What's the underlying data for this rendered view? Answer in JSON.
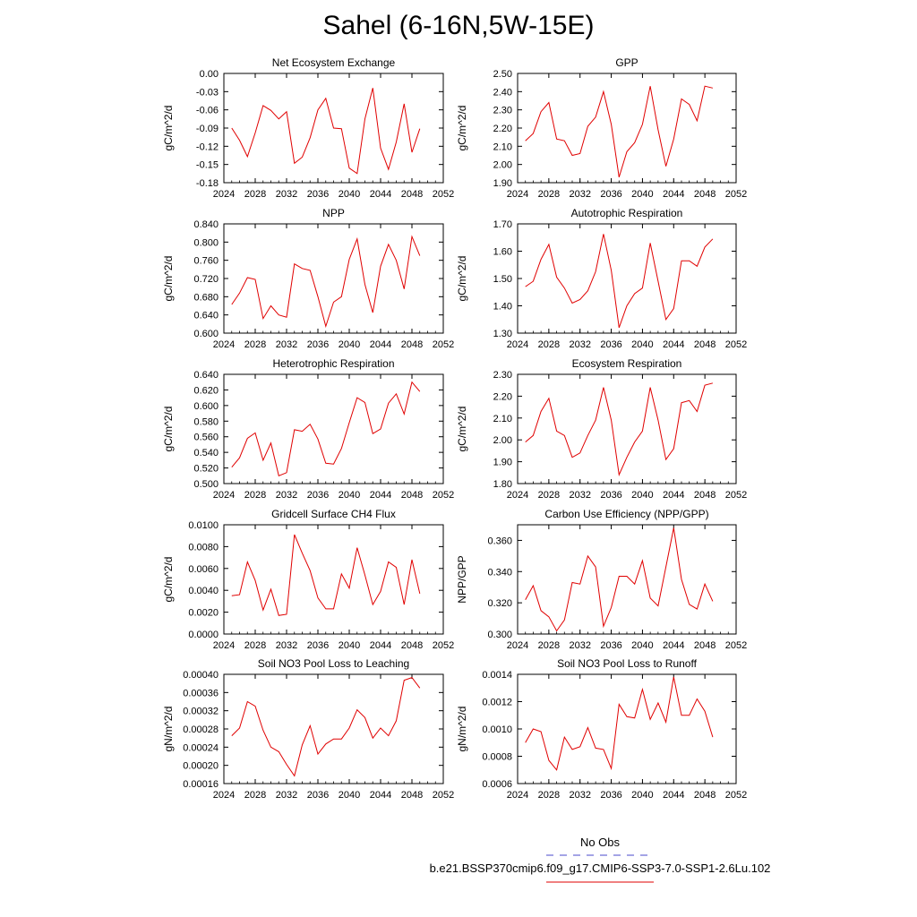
{
  "page_title": "Sahel (6-16N,5W-15E)",
  "legend": {
    "items": [
      {
        "label": "No Obs",
        "color": "#4a4acc",
        "dash": true
      },
      {
        "label": "b.e21.BSSP370cmip6.f09_g17.CMIP6-SSP3-7.0-SSP1-2.6Lu.102",
        "color": "#e00000",
        "dash": false
      }
    ]
  },
  "chart_data": [
    {
      "type": "line",
      "title": "Net Ecosystem Exchange",
      "ylabel": "gC/m^2/d",
      "xlim": [
        2024,
        2052
      ],
      "ylim": [
        -0.18,
        0.0
      ],
      "xticks": [
        "2024",
        "2028",
        "2032",
        "2036",
        "2040",
        "2044",
        "2048",
        "2052"
      ],
      "yticks": [
        "0.00",
        "-0.03",
        "-0.06",
        "-0.09",
        "-0.12",
        "-0.15",
        "-0.18"
      ],
      "series": [
        {
          "color": "#e00000",
          "x": [
            2025,
            2026,
            2027,
            2028,
            2029,
            2030,
            2031,
            2032,
            2033,
            2034,
            2035,
            2036,
            2037,
            2038,
            2039,
            2040,
            2041,
            2042,
            2043,
            2044,
            2045,
            2046,
            2047,
            2048,
            2049
          ],
          "y": [
            -0.09,
            -0.11,
            -0.137,
            -0.098,
            -0.053,
            -0.061,
            -0.075,
            -0.063,
            -0.148,
            -0.138,
            -0.106,
            -0.06,
            -0.041,
            -0.09,
            -0.091,
            -0.156,
            -0.165,
            -0.075,
            -0.024,
            -0.123,
            -0.158,
            -0.113,
            -0.05,
            -0.13,
            -0.091
          ]
        }
      ]
    },
    {
      "type": "line",
      "title": "GPP",
      "ylabel": "gC/m^2/d",
      "xlim": [
        2024,
        2052
      ],
      "ylim": [
        1.9,
        2.5
      ],
      "xticks": [
        "2024",
        "2028",
        "2032",
        "2036",
        "2040",
        "2044",
        "2048",
        "2052"
      ],
      "yticks": [
        "2.50",
        "2.40",
        "2.30",
        "2.20",
        "2.10",
        "2.00",
        "1.90"
      ],
      "series": [
        {
          "color": "#e00000",
          "x": [
            2025,
            2026,
            2027,
            2028,
            2029,
            2030,
            2031,
            2032,
            2033,
            2034,
            2035,
            2036,
            2037,
            2038,
            2039,
            2040,
            2041,
            2042,
            2043,
            2044,
            2045,
            2046,
            2047,
            2048,
            2049
          ],
          "y": [
            2.13,
            2.17,
            2.29,
            2.34,
            2.14,
            2.13,
            2.05,
            2.06,
            2.21,
            2.26,
            2.4,
            2.22,
            1.93,
            2.07,
            2.12,
            2.22,
            2.43,
            2.19,
            1.99,
            2.14,
            2.36,
            2.33,
            2.24,
            2.43,
            2.42
          ]
        }
      ]
    },
    {
      "type": "line",
      "title": "NPP",
      "ylabel": "gC/m^2/d",
      "xlim": [
        2024,
        2052
      ],
      "ylim": [
        0.6,
        0.84
      ],
      "xticks": [
        "2024",
        "2028",
        "2032",
        "2036",
        "2040",
        "2044",
        "2048",
        "2052"
      ],
      "yticks": [
        "0.840",
        "0.800",
        "0.760",
        "0.720",
        "0.680",
        "0.640",
        "0.600"
      ],
      "series": [
        {
          "color": "#e00000",
          "x": [
            2025,
            2026,
            2027,
            2028,
            2029,
            2030,
            2031,
            2032,
            2033,
            2034,
            2035,
            2036,
            2037,
            2038,
            2039,
            2040,
            2041,
            2042,
            2043,
            2044,
            2045,
            2046,
            2047,
            2048,
            2049
          ],
          "y": [
            0.663,
            0.688,
            0.722,
            0.718,
            0.632,
            0.66,
            0.64,
            0.635,
            0.752,
            0.742,
            0.738,
            0.68,
            0.615,
            0.668,
            0.68,
            0.762,
            0.807,
            0.707,
            0.645,
            0.747,
            0.795,
            0.76,
            0.697,
            0.812,
            0.77
          ]
        }
      ]
    },
    {
      "type": "line",
      "title": "Autotrophic Respiration",
      "ylabel": "gC/m^2/d",
      "xlim": [
        2024,
        2052
      ],
      "ylim": [
        1.3,
        1.7
      ],
      "xticks": [
        "2024",
        "2028",
        "2032",
        "2036",
        "2040",
        "2044",
        "2048",
        "2052"
      ],
      "yticks": [
        "1.70",
        "1.60",
        "1.50",
        "1.40",
        "1.30"
      ],
      "series": [
        {
          "color": "#e00000",
          "x": [
            2025,
            2026,
            2027,
            2028,
            2029,
            2030,
            2031,
            2032,
            2033,
            2034,
            2035,
            2036,
            2037,
            2038,
            2039,
            2040,
            2041,
            2042,
            2043,
            2044,
            2045,
            2046,
            2047,
            2048,
            2049
          ],
          "y": [
            1.47,
            1.49,
            1.57,
            1.625,
            1.505,
            1.465,
            1.41,
            1.423,
            1.455,
            1.525,
            1.663,
            1.53,
            1.32,
            1.4,
            1.445,
            1.465,
            1.63,
            1.49,
            1.35,
            1.39,
            1.565,
            1.565,
            1.545,
            1.615,
            1.645
          ]
        }
      ]
    },
    {
      "type": "line",
      "title": "Heterotrophic Respiration",
      "ylabel": "gC/m^2/d",
      "xlim": [
        2024,
        2052
      ],
      "ylim": [
        0.5,
        0.64
      ],
      "xticks": [
        "2024",
        "2028",
        "2032",
        "2036",
        "2040",
        "2044",
        "2048",
        "2052"
      ],
      "yticks": [
        "0.640",
        "0.620",
        "0.600",
        "0.580",
        "0.560",
        "0.540",
        "0.520",
        "0.500"
      ],
      "series": [
        {
          "color": "#e00000",
          "x": [
            2025,
            2026,
            2027,
            2028,
            2029,
            2030,
            2031,
            2032,
            2033,
            2034,
            2035,
            2036,
            2037,
            2038,
            2039,
            2040,
            2041,
            2042,
            2043,
            2044,
            2045,
            2046,
            2047,
            2048,
            2049
          ],
          "y": [
            0.521,
            0.533,
            0.558,
            0.565,
            0.53,
            0.552,
            0.51,
            0.514,
            0.569,
            0.567,
            0.576,
            0.557,
            0.526,
            0.525,
            0.545,
            0.578,
            0.61,
            0.604,
            0.564,
            0.57,
            0.603,
            0.615,
            0.589,
            0.63,
            0.618
          ]
        }
      ]
    },
    {
      "type": "line",
      "title": "Ecosystem Respiration",
      "ylabel": "gC/m^2/d",
      "xlim": [
        2024,
        2052
      ],
      "ylim": [
        1.8,
        2.3
      ],
      "xticks": [
        "2024",
        "2028",
        "2032",
        "2036",
        "2040",
        "2044",
        "2048",
        "2052"
      ],
      "yticks": [
        "2.30",
        "2.20",
        "2.10",
        "2.00",
        "1.90",
        "1.80"
      ],
      "series": [
        {
          "color": "#e00000",
          "x": [
            2025,
            2026,
            2027,
            2028,
            2029,
            2030,
            2031,
            2032,
            2033,
            2034,
            2035,
            2036,
            2037,
            2038,
            2039,
            2040,
            2041,
            2042,
            2043,
            2044,
            2045,
            2046,
            2047,
            2048,
            2049
          ],
          "y": [
            1.99,
            2.02,
            2.13,
            2.19,
            2.04,
            2.02,
            1.92,
            1.94,
            2.02,
            2.09,
            2.24,
            2.09,
            1.84,
            1.92,
            1.99,
            2.04,
            2.24,
            2.09,
            1.91,
            1.96,
            2.17,
            2.18,
            2.13,
            2.25,
            2.26
          ]
        }
      ]
    },
    {
      "type": "line",
      "title": "Gridcell Surface CH4 Flux",
      "ylabel": "gC/m^2/d",
      "xlim": [
        2024,
        2052
      ],
      "ylim": [
        0.0,
        0.01
      ],
      "xticks": [
        "2024",
        "2028",
        "2032",
        "2036",
        "2040",
        "2044",
        "2048",
        "2052"
      ],
      "yticks": [
        "0.0100",
        "0.0080",
        "0.0060",
        "0.0040",
        "0.0020",
        "0.0000"
      ],
      "series": [
        {
          "color": "#e00000",
          "x": [
            2025,
            2026,
            2027,
            2028,
            2029,
            2030,
            2031,
            2032,
            2033,
            2034,
            2035,
            2036,
            2037,
            2038,
            2039,
            2040,
            2041,
            2042,
            2043,
            2044,
            2045,
            2046,
            2047,
            2048,
            2049
          ],
          "y": [
            0.0035,
            0.0036,
            0.0066,
            0.0049,
            0.0022,
            0.0041,
            0.0017,
            0.0018,
            0.0091,
            0.0074,
            0.0058,
            0.0033,
            0.0023,
            0.0023,
            0.0055,
            0.0042,
            0.0079,
            0.0054,
            0.0027,
            0.0039,
            0.0066,
            0.0061,
            0.0027,
            0.0068,
            0.0037
          ]
        }
      ]
    },
    {
      "type": "line",
      "title": "Carbon Use Efficiency (NPP/GPP)",
      "ylabel": "NPP/GPP",
      "xlim": [
        2024,
        2052
      ],
      "ylim": [
        0.3,
        0.37
      ],
      "xticks": [
        "2024",
        "2028",
        "2032",
        "2036",
        "2040",
        "2044",
        "2048",
        "2052"
      ],
      "yticks": [
        "0.360",
        "0.340",
        "0.320",
        "0.300"
      ],
      "series": [
        {
          "color": "#e00000",
          "x": [
            2025,
            2026,
            2027,
            2028,
            2029,
            2030,
            2031,
            2032,
            2033,
            2034,
            2035,
            2036,
            2037,
            2038,
            2039,
            2040,
            2041,
            2042,
            2043,
            2044,
            2045,
            2046,
            2047,
            2048,
            2049
          ],
          "y": [
            0.322,
            0.331,
            0.315,
            0.311,
            0.302,
            0.309,
            0.333,
            0.332,
            0.35,
            0.343,
            0.305,
            0.317,
            0.337,
            0.337,
            0.332,
            0.347,
            0.323,
            0.318,
            0.343,
            0.368,
            0.335,
            0.319,
            0.316,
            0.332,
            0.321
          ]
        }
      ]
    },
    {
      "type": "line",
      "title": "Soil NO3 Pool Loss to Leaching",
      "ylabel": "gN/m^2/d",
      "xlim": [
        2024,
        2052
      ],
      "ylim": [
        0.00016,
        0.0004
      ],
      "xticks": [
        "2024",
        "2028",
        "2032",
        "2036",
        "2040",
        "2044",
        "2048",
        "2052"
      ],
      "yticks": [
        "0.00040",
        "0.00036",
        "0.00032",
        "0.00028",
        "0.00024",
        "0.00020",
        "0.00016"
      ],
      "series": [
        {
          "color": "#e00000",
          "x": [
            2025,
            2026,
            2027,
            2028,
            2029,
            2030,
            2031,
            2032,
            2033,
            2034,
            2035,
            2036,
            2037,
            2038,
            2039,
            2040,
            2041,
            2042,
            2043,
            2044,
            2045,
            2046,
            2047,
            2048,
            2049
          ],
          "y": [
            0.000265,
            0.000282,
            0.00034,
            0.00033,
            0.000277,
            0.00024,
            0.00023,
            0.000202,
            0.000177,
            0.000245,
            0.000287,
            0.000225,
            0.000247,
            0.000258,
            0.000258,
            0.000282,
            0.000322,
            0.000305,
            0.00026,
            0.000282,
            0.000265,
            0.000298,
            0.000387,
            0.000393,
            0.00037
          ]
        }
      ]
    },
    {
      "type": "line",
      "title": "Soil NO3 Pool Loss to Runoff",
      "ylabel": "gN/m^2/d",
      "xlim": [
        2024,
        2052
      ],
      "ylim": [
        0.0006,
        0.0014
      ],
      "xticks": [
        "2024",
        "2028",
        "2032",
        "2036",
        "2040",
        "2044",
        "2048",
        "2052"
      ],
      "yticks": [
        "0.0014",
        "0.0012",
        "0.0010",
        "0.0008",
        "0.0006"
      ],
      "series": [
        {
          "color": "#e00000",
          "x": [
            2025,
            2026,
            2027,
            2028,
            2029,
            2030,
            2031,
            2032,
            2033,
            2034,
            2035,
            2036,
            2037,
            2038,
            2039,
            2040,
            2041,
            2042,
            2043,
            2044,
            2045,
            2046,
            2047,
            2048,
            2049
          ],
          "y": [
            0.0009,
            0.001,
            0.00098,
            0.00077,
            0.0007,
            0.00094,
            0.00085,
            0.00087,
            0.00101,
            0.00086,
            0.00085,
            0.00071,
            0.00118,
            0.00109,
            0.00108,
            0.00129,
            0.00107,
            0.00119,
            0.00105,
            0.00138,
            0.0011,
            0.0011,
            0.00122,
            0.00113,
            0.00094
          ]
        }
      ]
    }
  ]
}
